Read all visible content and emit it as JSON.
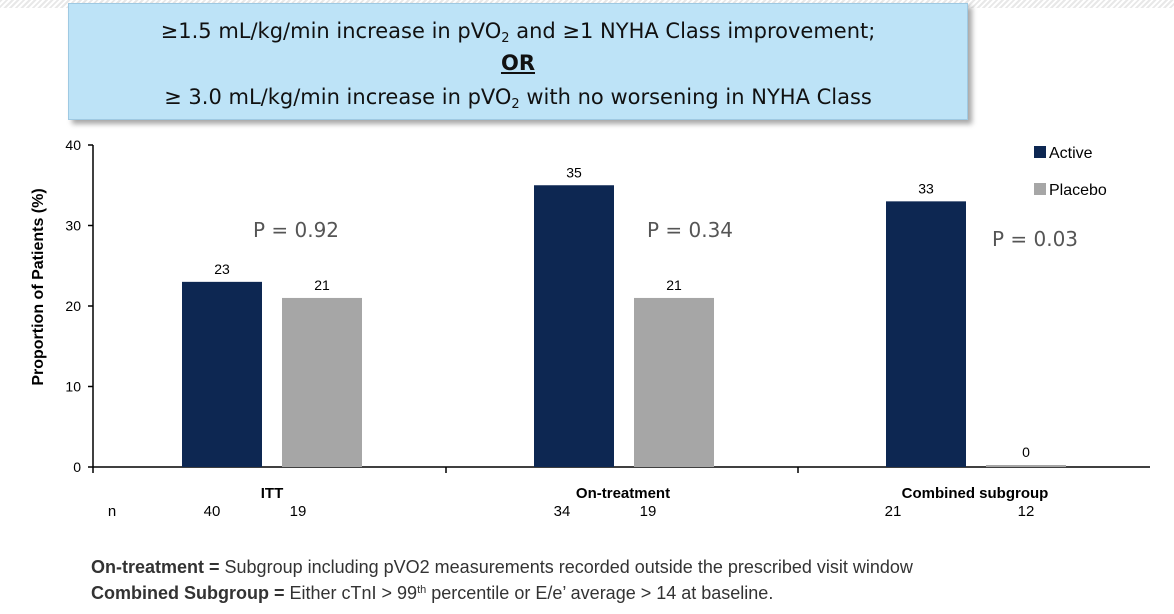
{
  "criteria": {
    "line1_pre": "≥1.5 mL/kg/min increase in pVO",
    "line1_sub": "2",
    "line1_post": " and ≥1 NYHA Class improvement;",
    "or_label": "OR",
    "line3_pre": "≥ 3.0 mL/kg/min increase in pVO",
    "line3_sub": "2",
    "line3_post": " with no worsening in NYHA Class"
  },
  "chart_data": {
    "type": "bar",
    "ylabel": "Proportion of Patients (%)",
    "ylim": [
      0,
      40
    ],
    "yticks": [
      0,
      10,
      20,
      30,
      40
    ],
    "grid": false,
    "legend_position": "top-right",
    "categories": [
      "ITT",
      "On-treatment",
      "Combined subgroup"
    ],
    "series": [
      {
        "name": "Active",
        "color": "#0d2752",
        "values": [
          23,
          35,
          33
        ],
        "labels": [
          "23",
          "35",
          "33"
        ],
        "n": [
          "40",
          "34",
          "21"
        ]
      },
      {
        "name": "Placebo",
        "color": "#a6a6a6",
        "values": [
          21,
          21,
          0
        ],
        "labels": [
          "21",
          "21",
          "0"
        ],
        "n": [
          "19",
          "19",
          "12"
        ]
      }
    ],
    "p_values": [
      "P = 0.92",
      "P = 0.34",
      "P = 0.03"
    ],
    "n_row_label": "n"
  },
  "footnotes": {
    "fn1_term": "On-treatment =",
    "fn1_text": " Subgroup including pVO2 measurements recorded outside the prescribed visit window",
    "fn2_term": "Combined Subgroup =",
    "fn2_text_a": " Either cTnI > 99",
    "fn2_sup": "th",
    "fn2_text_b": " percentile or E/e’ average > 14 at baseline."
  }
}
